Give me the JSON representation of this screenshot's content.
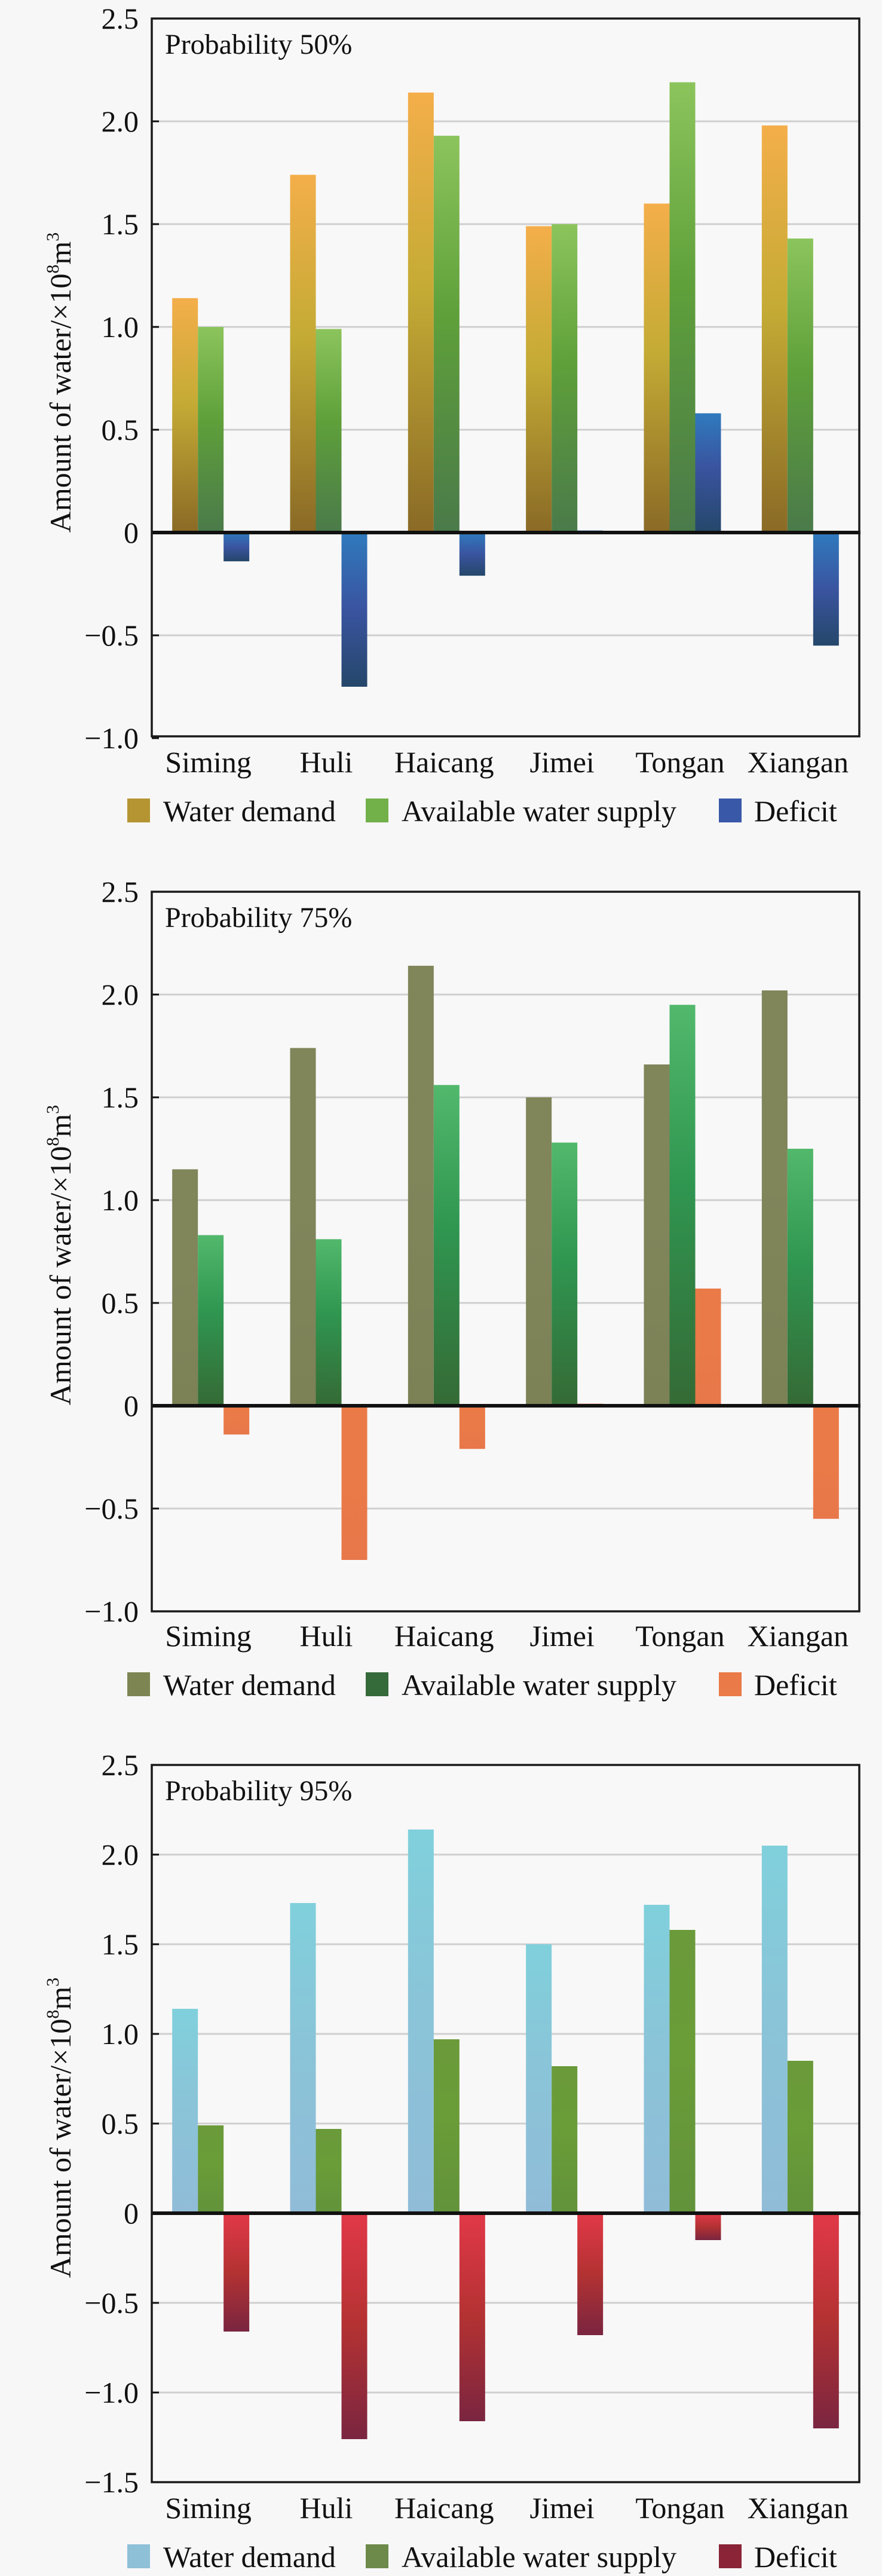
{
  "chart_data": [
    {
      "type": "bar",
      "title": "Probability 50%",
      "xlabel": "",
      "ylabel": "Amount of water/×10⁸m³",
      "ylabel_parts": {
        "main": "Amount of water/×10",
        "exp1": "8",
        "unit": "m",
        "exp2": "3"
      },
      "ylim": [
        -1.0,
        2.5
      ],
      "yticks": [
        2.5,
        2.0,
        1.5,
        1.0,
        0.5,
        0,
        -0.5,
        -1.0
      ],
      "ytick_labels": [
        "2.5",
        "2.0",
        "1.5",
        "1.0",
        "0.5",
        "0",
        "−0.5",
        "−1.0"
      ],
      "grid": true,
      "legend_position": "bottom",
      "categories": [
        "Siming",
        "Huli",
        "Haicang",
        "Jimei",
        "Tongan",
        "Xiangan"
      ],
      "series": [
        {
          "name": "Water demand",
          "values": [
            1.14,
            1.74,
            2.14,
            1.49,
            1.6,
            1.98
          ],
          "colors": {
            "top": "#f4ae4a",
            "mid": "#c4ab35",
            "bottom": "#8a6a26",
            "swatch": "#b59532"
          }
        },
        {
          "name": "Available water supply",
          "values": [
            1.0,
            0.99,
            1.93,
            1.5,
            2.19,
            1.43
          ],
          "colors": {
            "top": "#8cc45c",
            "mid": "#5fa03a",
            "bottom": "#4a7a4a",
            "swatch": "#72b04a"
          }
        },
        {
          "name": "Deficit",
          "values": [
            -0.14,
            -0.75,
            -0.21,
            0.01,
            0.58,
            -0.55
          ],
          "colors": {
            "top": "#2f7abd",
            "mid": "#3a54a0",
            "bottom": "#25476a",
            "swatch": "#3a58a8"
          }
        }
      ]
    },
    {
      "type": "bar",
      "title": "Probability 75%",
      "xlabel": "",
      "ylabel": "Amount of water/×10⁸m³",
      "ylabel_parts": {
        "main": "Amount of water/×10",
        "exp1": "8",
        "unit": "m",
        "exp2": "3"
      },
      "ylim": [
        -1.0,
        2.5
      ],
      "yticks": [
        2.5,
        2.0,
        1.5,
        1.0,
        0.5,
        0,
        -0.5,
        -1.0
      ],
      "ytick_labels": [
        "2.5",
        "2.0",
        "1.5",
        "1.0",
        "0.5",
        "0",
        "−0.5",
        "−1.0"
      ],
      "grid": true,
      "legend_position": "bottom",
      "categories": [
        "Siming",
        "Huli",
        "Haicang",
        "Jimei",
        "Tongan",
        "Xiangan"
      ],
      "series": [
        {
          "name": "Water demand",
          "values": [
            1.15,
            1.74,
            2.14,
            1.5,
            1.66,
            2.02
          ],
          "colors": {
            "top": "#80855a",
            "mid": "#80855a",
            "bottom": "#7c8156",
            "swatch": "#7d8552"
          }
        },
        {
          "name": "Available water supply",
          "values": [
            0.83,
            0.81,
            1.56,
            1.28,
            1.95,
            1.25
          ],
          "colors": {
            "top": "#52b86c",
            "mid": "#2f9650",
            "bottom": "#356a35",
            "swatch": "#356a3a"
          }
        },
        {
          "name": "Deficit",
          "values": [
            -0.14,
            -0.75,
            -0.21,
            0.01,
            0.57,
            -0.55
          ],
          "colors": {
            "top": "#ea7a48",
            "mid": "#ea7a48",
            "bottom": "#e8774a",
            "swatch": "#ea7a48"
          }
        }
      ]
    },
    {
      "type": "bar",
      "title": "Probability 95%",
      "xlabel": "",
      "ylabel": "Amount of water/×10⁸m³",
      "ylabel_parts": {
        "main": "Amount of water/×10",
        "exp1": "8",
        "unit": "m",
        "exp2": "3"
      },
      "ylim": [
        -1.5,
        2.5
      ],
      "yticks": [
        2.5,
        2.0,
        1.5,
        1.0,
        0.5,
        0,
        -0.5,
        -1.0,
        -1.5
      ],
      "ytick_labels": [
        "2.5",
        "2.0",
        "1.5",
        "1.0",
        "0.5",
        "0",
        "−0.5",
        "−1.0",
        "−1.5"
      ],
      "grid": true,
      "legend_position": "bottom",
      "categories": [
        "Siming",
        "Huli",
        "Haicang",
        "Jimei",
        "Tongan",
        "Xiangan"
      ],
      "series": [
        {
          "name": "Water demand",
          "values": [
            1.14,
            1.73,
            2.14,
            1.5,
            1.72,
            2.05
          ],
          "colors": {
            "top": "#80d0dc",
            "mid": "#8ac4d8",
            "bottom": "#90bcd8",
            "swatch": "#8ec0d8"
          }
        },
        {
          "name": "Available water supply",
          "values": [
            0.49,
            0.47,
            0.97,
            0.82,
            1.58,
            0.85
          ],
          "colors": {
            "top": "#6a9a3a",
            "mid": "#6a9c38",
            "bottom": "#62923a",
            "swatch": "#6e8a4a"
          }
        },
        {
          "name": "Deficit",
          "values": [
            -0.66,
            -1.26,
            -1.16,
            -0.68,
            -0.15,
            -1.2
          ],
          "colors": {
            "top": "#e23848",
            "mid": "#b33232",
            "bottom": "#7a2540",
            "swatch": "#8a2436"
          }
        }
      ]
    }
  ]
}
